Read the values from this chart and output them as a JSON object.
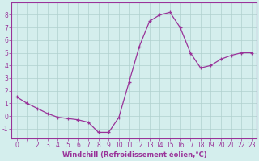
{
  "x": [
    0,
    1,
    2,
    3,
    4,
    5,
    6,
    7,
    8,
    9,
    10,
    11,
    12,
    13,
    14,
    15,
    16,
    17,
    18,
    19,
    20,
    21,
    22,
    23
  ],
  "y": [
    1.5,
    1.0,
    0.6,
    0.2,
    -0.1,
    -0.2,
    -0.3,
    -0.5,
    -1.3,
    -1.3,
    -0.1,
    2.7,
    5.5,
    7.5,
    8.0,
    8.2,
    7.0,
    5.0,
    3.8,
    4.0,
    4.5,
    4.8,
    5.0,
    5.0
  ],
  "line_color": "#993399",
  "marker": "+",
  "marker_size": 3,
  "linewidth": 0.9,
  "markeredgewidth": 0.9,
  "xlabel": "Windchill (Refroidissement éolien,°C)",
  "ylabel_ticks": [
    -1,
    0,
    1,
    2,
    3,
    4,
    5,
    6,
    7,
    8
  ],
  "xlim": [
    -0.5,
    23.5
  ],
  "ylim": [
    -1.8,
    9.0
  ],
  "background_color": "#d4eeed",
  "grid_color": "#b0d0ce",
  "spine_color": "#993399",
  "tick_color": "#993399",
  "label_color": "#993399",
  "xlabel_fontsize": 6.0,
  "tick_fontsize": 5.5
}
